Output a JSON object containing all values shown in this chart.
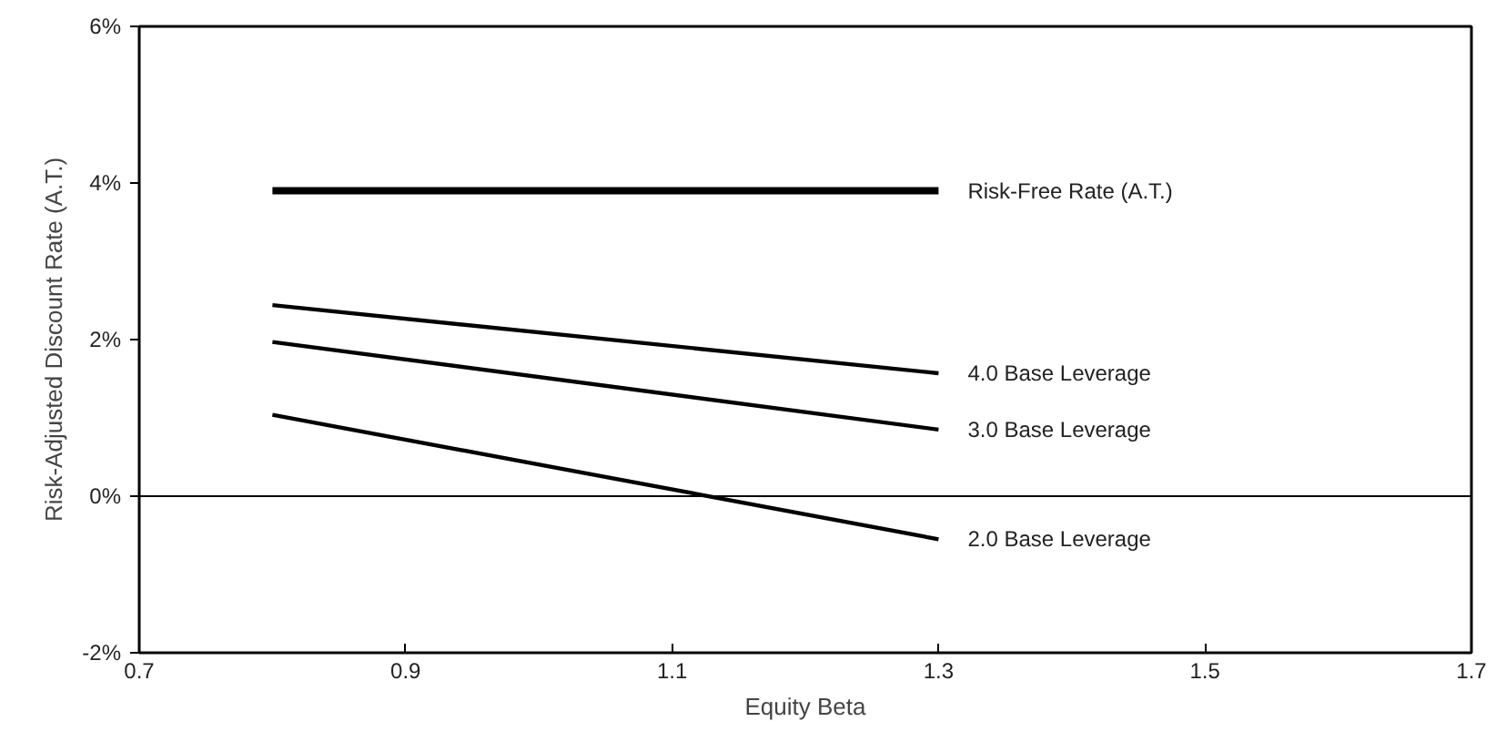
{
  "chart_data": {
    "type": "line",
    "xlabel": "Equity Beta",
    "ylabel": "Risk-Adjusted Discount Rate (A.T.)",
    "xlim": [
      0.7,
      1.7
    ],
    "xticks": [
      0.7,
      0.9,
      1.1,
      1.3,
      1.5,
      1.7
    ],
    "ylim": [
      -2,
      6
    ],
    "yticks": [
      {
        "value": -2,
        "label": "-2%"
      },
      {
        "value": 0,
        "label": "0%"
      },
      {
        "value": 2,
        "label": "2%"
      },
      {
        "value": 4,
        "label": "4%"
      },
      {
        "value": 6,
        "label": "6%"
      }
    ],
    "x": [
      0.8,
      1.3
    ],
    "series": [
      {
        "name": "Risk-Free Rate (A.T.)",
        "color": "#000000",
        "values": [
          3.9,
          3.9
        ]
      },
      {
        "name": "4.0 Base Leverage",
        "color": "#000000",
        "values": [
          2.44,
          1.57
        ]
      },
      {
        "name": "3.0 Base Leverage",
        "color": "#000000",
        "values": [
          1.97,
          0.85
        ]
      },
      {
        "name": "2.0 Base Leverage",
        "color": "#000000",
        "values": [
          1.04,
          -0.55
        ]
      }
    ],
    "ref_lines": [
      {
        "axis": "y",
        "value": 0,
        "color": "#000000",
        "line_style": "solid"
      }
    ],
    "grid": false,
    "marker": "none",
    "line_style": "solid"
  }
}
